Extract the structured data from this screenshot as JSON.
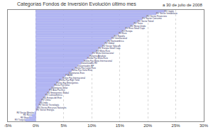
{
  "chart_data": {
    "type": "bar",
    "orientation": "horizontal",
    "title": "Categorías Fondos de Inversión Evolución último mes",
    "subtitle": "a 30 de julio de 2008",
    "categories": [
      "RV Japón",
      "RV Sector Inmobiliario",
      "RV Sector Financiero",
      "RV Sector Consumo",
      "RV Sector Salud",
      "RV Suiza",
      "RV Reino Unido",
      "RV Euro Small Caps",
      "RV Europa",
      "RV Euro",
      "RV España",
      "RV Internacional",
      "RV Norteamérica",
      "RV Global",
      "RV Sector Telecom",
      "RV Europa Small Caps",
      "RV Mixta Euro",
      "RV Mixta Internacional",
      "Retorno Absoluto",
      "Renta Fija Mixta Euro",
      "Renta Fija Mixta Internacional",
      "Garantizados RV",
      "Garantizados RF",
      "Renta Fija Largo Euro",
      "Renta Fija Corto Euro",
      "Monetarios Euro",
      "FIAMM",
      "Renta Fija Internacional",
      "Renta Fija High Yield",
      "Renta Fija Emergentes",
      "Renta Fija Dólar",
      "Monetarios Dólar",
      "RV Asia Pacífico",
      "RV Emergentes Global",
      "RV Latinoamérica",
      "RV Europa del Este",
      "RV China",
      "RV India",
      "RV Sector Tecnología",
      "RV Sector Recursos Naturales",
      "RV Sector Energía",
      "RV Sector Metales",
      "RV Rusia",
      "RV Brasil",
      "RV Turquía"
    ],
    "values": [
      23.0,
      21.5,
      19.8,
      19.0,
      18.2,
      17.5,
      16.9,
      16.0,
      15.4,
      14.8,
      14.0,
      13.5,
      12.8,
      12.3,
      11.9,
      11.2,
      10.8,
      10.1,
      9.6,
      9.2,
      8.6,
      8.1,
      7.5,
      7.0,
      6.4,
      5.9,
      5.3,
      4.8,
      4.2,
      3.7,
      3.3,
      2.8,
      2.4,
      2.0,
      1.7,
      1.3,
      1.0,
      0.7,
      0.5,
      0.3,
      0.1,
      -0.2,
      -0.6,
      -1.1,
      -1.8
    ],
    "color": "#b4b8f4",
    "xlim": [
      -5,
      30
    ],
    "xticks": [
      {
        "value": -5,
        "label": "-5%"
      },
      {
        "value": 0,
        "label": "0%"
      },
      {
        "value": 5,
        "label": "5%"
      },
      {
        "value": 10,
        "label": "10%"
      },
      {
        "value": 15,
        "label": "15%"
      },
      {
        "value": 20,
        "label": "20%"
      },
      {
        "value": 25,
        "label": "25%"
      },
      {
        "value": 30,
        "label": "30%"
      }
    ],
    "grid": true,
    "tick_labels": "x"
  }
}
